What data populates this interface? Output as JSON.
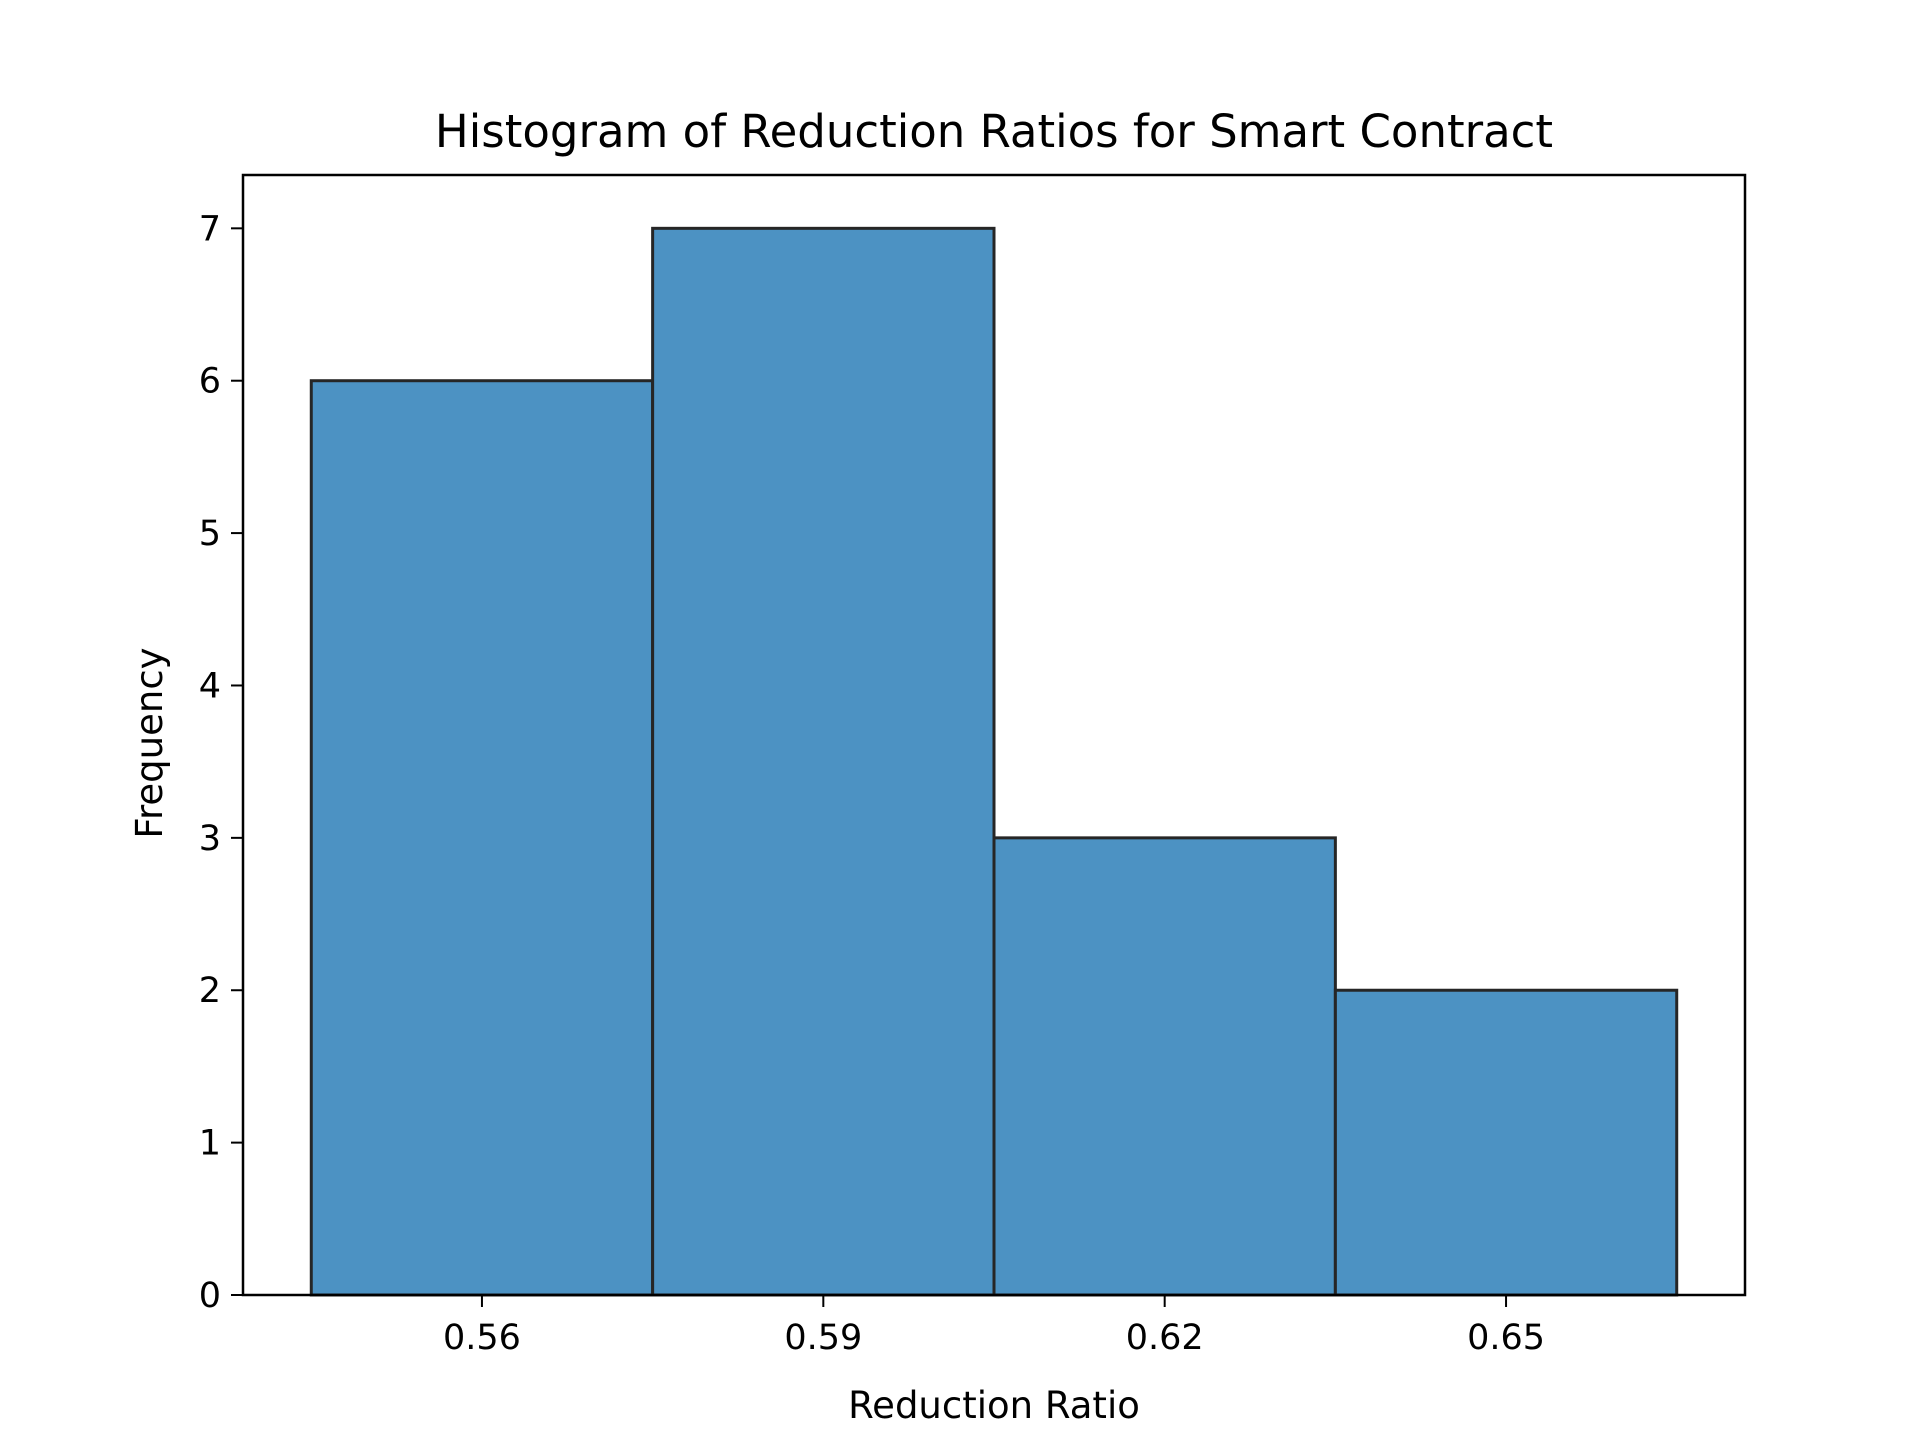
{
  "chart_data": {
    "type": "bar",
    "title": "Histogram of Reduction Ratios for Smart Contract",
    "xlabel": "Reduction Ratio",
    "ylabel": "Frequency",
    "bins": [
      {
        "start": 0.545,
        "end": 0.575,
        "count": 6
      },
      {
        "start": 0.575,
        "end": 0.605,
        "count": 7
      },
      {
        "start": 0.605,
        "end": 0.635,
        "count": 3
      },
      {
        "start": 0.635,
        "end": 0.665,
        "count": 2
      }
    ],
    "xticks": [
      {
        "value": 0.56,
        "label": "0.56"
      },
      {
        "value": 0.59,
        "label": "0.59"
      },
      {
        "value": 0.62,
        "label": "0.62"
      },
      {
        "value": 0.65,
        "label": "0.65"
      }
    ],
    "yticks": [
      {
        "value": 0,
        "label": "0"
      },
      {
        "value": 1,
        "label": "1"
      },
      {
        "value": 2,
        "label": "2"
      },
      {
        "value": 3,
        "label": "3"
      },
      {
        "value": 4,
        "label": "4"
      },
      {
        "value": 5,
        "label": "5"
      },
      {
        "value": 6,
        "label": "6"
      },
      {
        "value": 7,
        "label": "7"
      }
    ],
    "xlim": [
      0.539,
      0.671
    ],
    "ylim": [
      0,
      7.35
    ],
    "grid": false,
    "legend": "none",
    "colors": {
      "bar_fill": "#4c92c3",
      "bar_edge": "#262626",
      "axes": "#000000"
    }
  }
}
